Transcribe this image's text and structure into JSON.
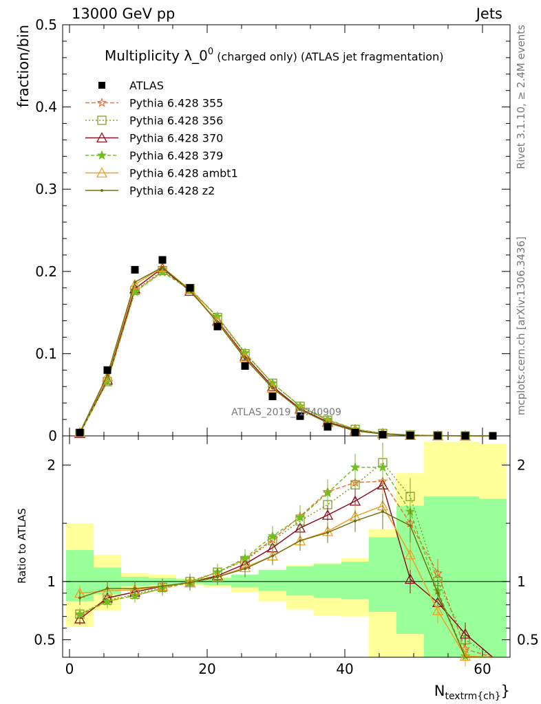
{
  "header": {
    "left": "13000 GeV pp",
    "right": "Jets"
  },
  "title": {
    "main": "Multiplicity λ_0",
    "superscript": "0",
    "suffix": " (charged only) (ATLAS jet fragmentation)"
  },
  "side_labels": {
    "rivet": "Rivet 3.1.10, ≥ 2.4M events",
    "mcplots": "mcplots.cern.ch [arXiv:1306.3436]"
  },
  "watermark": "ATLAS_2019_I1740909",
  "axes": {
    "ylabel_main": "fraction/bin",
    "ylabel_ratio": "Ratio to ATLAS",
    "xlabel": "N",
    "xlabel_sub": "textrm{ch}",
    "xlabel_close": "}"
  },
  "chart_data": {
    "type": "line",
    "xlim": [
      -1,
      64
    ],
    "ylim_main": [
      0,
      0.5
    ],
    "ylim_ratio": [
      0.35,
      2.25
    ],
    "main_y_ticks": [
      "0",
      "0.1",
      "0.2",
      "0.3",
      "0.4",
      "0.5"
    ],
    "ratio_y_ticks": [
      "0.5",
      "1",
      "2"
    ],
    "x_ticks": [
      "0",
      "20",
      "40",
      "60"
    ],
    "x": [
      1.5,
      5.5,
      9.5,
      13.5,
      17.5,
      21.5,
      25.5,
      29.5,
      33.5,
      37.5,
      41.5,
      45.5,
      49.5,
      53.5,
      57.5,
      61.5
    ],
    "bin_edges": [
      -0.5,
      3.5,
      7.5,
      11.5,
      15.5,
      19.5,
      23.5,
      27.5,
      31.5,
      35.5,
      39.5,
      43.5,
      47.5,
      51.5,
      55.5,
      59.5,
      63.5
    ],
    "data": {
      "name": "ATLAS",
      "values": [
        0.004,
        0.08,
        0.202,
        0.214,
        0.18,
        0.133,
        0.085,
        0.048,
        0.024,
        0.011,
        0.004,
        0.0015,
        0.0006,
        0.0002,
        0.0001,
        4e-05
      ],
      "band_yellow_lo": [
        0.61,
        0.75,
        0.93,
        0.95,
        0.97,
        0.95,
        0.91,
        0.83,
        0.76,
        0.71,
        0.7,
        0.0,
        0.0,
        0.0,
        0.0,
        0.0
      ],
      "band_yellow_hi": [
        1.5,
        1.23,
        1.07,
        1.06,
        1.03,
        1.04,
        1.06,
        1.1,
        1.14,
        1.16,
        1.2,
        1.45,
        1.93,
        2.2,
        2.2,
        2.18
      ],
      "band_green_lo": [
        0.83,
        0.89,
        0.96,
        0.97,
        0.98,
        0.97,
        0.95,
        0.92,
        0.88,
        0.86,
        0.85,
        0.74,
        0.55,
        0.3,
        0.3,
        0.3
      ],
      "band_green_hi": [
        1.27,
        1.12,
        1.04,
        1.03,
        1.02,
        1.03,
        1.06,
        1.1,
        1.13,
        1.15,
        1.17,
        1.38,
        1.65,
        1.73,
        1.73,
        1.71
      ]
    },
    "series": [
      {
        "name": "Pythia 6.428 355",
        "color": "#f07030",
        "dash": "6,3",
        "marker": "star-open",
        "values": [
          0.003,
          0.066,
          0.176,
          0.2,
          0.179,
          0.145,
          0.101,
          0.064,
          0.036,
          0.019,
          0.008,
          0.003,
          0.001,
          0.0003,
          5e-05,
          1e-05
        ],
        "ratio": [
          0.71,
          0.83,
          0.88,
          0.94,
          1.0,
          1.08,
          1.19,
          1.36,
          1.56,
          1.77,
          1.85,
          1.86,
          1.5,
          1.07,
          0.42,
          0.3
        ]
      },
      {
        "name": "Pythia 6.428 356",
        "color": "#80a020",
        "dash": "2,3",
        "marker": "square-open",
        "values": [
          0.003,
          0.066,
          0.177,
          0.201,
          0.179,
          0.144,
          0.1,
          0.064,
          0.036,
          0.019,
          0.008,
          0.003,
          0.001,
          0.0003,
          6e-05,
          1e-05
        ],
        "ratio": [
          0.72,
          0.84,
          0.89,
          0.95,
          1.0,
          1.08,
          1.18,
          1.35,
          1.52,
          1.66,
          1.83,
          2.02,
          1.73,
          1.0,
          0.5,
          0.3
        ]
      },
      {
        "name": "Pythia 6.428 370",
        "color": "#8b1020",
        "dash": "",
        "marker": "triangle-open",
        "values": [
          0.003,
          0.068,
          0.179,
          0.204,
          0.176,
          0.14,
          0.097,
          0.06,
          0.033,
          0.017,
          0.007,
          0.0027,
          0.0006,
          0.0002,
          5e-05,
          1e-05
        ],
        "ratio": [
          0.68,
          0.86,
          0.91,
          0.96,
          0.99,
          1.05,
          1.15,
          1.29,
          1.46,
          1.57,
          1.69,
          1.83,
          1.02,
          0.82,
          0.55,
          0.3
        ]
      },
      {
        "name": "Pythia 6.428 379",
        "color": "#70c020",
        "dash": "5,3",
        "marker": "star",
        "values": [
          0.003,
          0.066,
          0.175,
          0.199,
          0.178,
          0.145,
          0.101,
          0.064,
          0.036,
          0.02,
          0.008,
          0.003,
          0.001,
          0.0003,
          5e-05,
          1e-05
        ],
        "ratio": [
          0.72,
          0.83,
          0.88,
          0.94,
          0.99,
          1.08,
          1.2,
          1.39,
          1.55,
          1.76,
          1.98,
          1.98,
          1.6,
          0.92,
          0.36,
          0.3
        ]
      },
      {
        "name": "Pythia 6.428 ambt1",
        "color": "#f0a020",
        "dash": "",
        "marker": "triangle-open",
        "values": [
          0.004,
          0.072,
          0.184,
          0.205,
          0.178,
          0.139,
          0.095,
          0.058,
          0.032,
          0.016,
          0.006,
          0.0024,
          0.0007,
          0.0002,
          4e-05,
          1e-05
        ],
        "ratio": [
          0.9,
          0.92,
          0.93,
          0.96,
          0.99,
          1.04,
          1.12,
          1.22,
          1.35,
          1.43,
          1.56,
          1.65,
          1.23,
          0.75,
          0.36,
          0.3
        ]
      },
      {
        "name": "Pythia 6.428 z2",
        "color": "#707010",
        "dash": "",
        "marker": "dot",
        "values": [
          0.004,
          0.074,
          0.187,
          0.205,
          0.177,
          0.138,
          0.094,
          0.058,
          0.032,
          0.016,
          0.006,
          0.0023,
          0.0007,
          0.0002,
          3e-05,
          1e-05
        ],
        "ratio": [
          0.86,
          0.94,
          0.94,
          0.96,
          0.99,
          1.04,
          1.11,
          1.22,
          1.35,
          1.42,
          1.52,
          1.6,
          1.48,
          0.9,
          0.3,
          0.3
        ]
      }
    ]
  }
}
